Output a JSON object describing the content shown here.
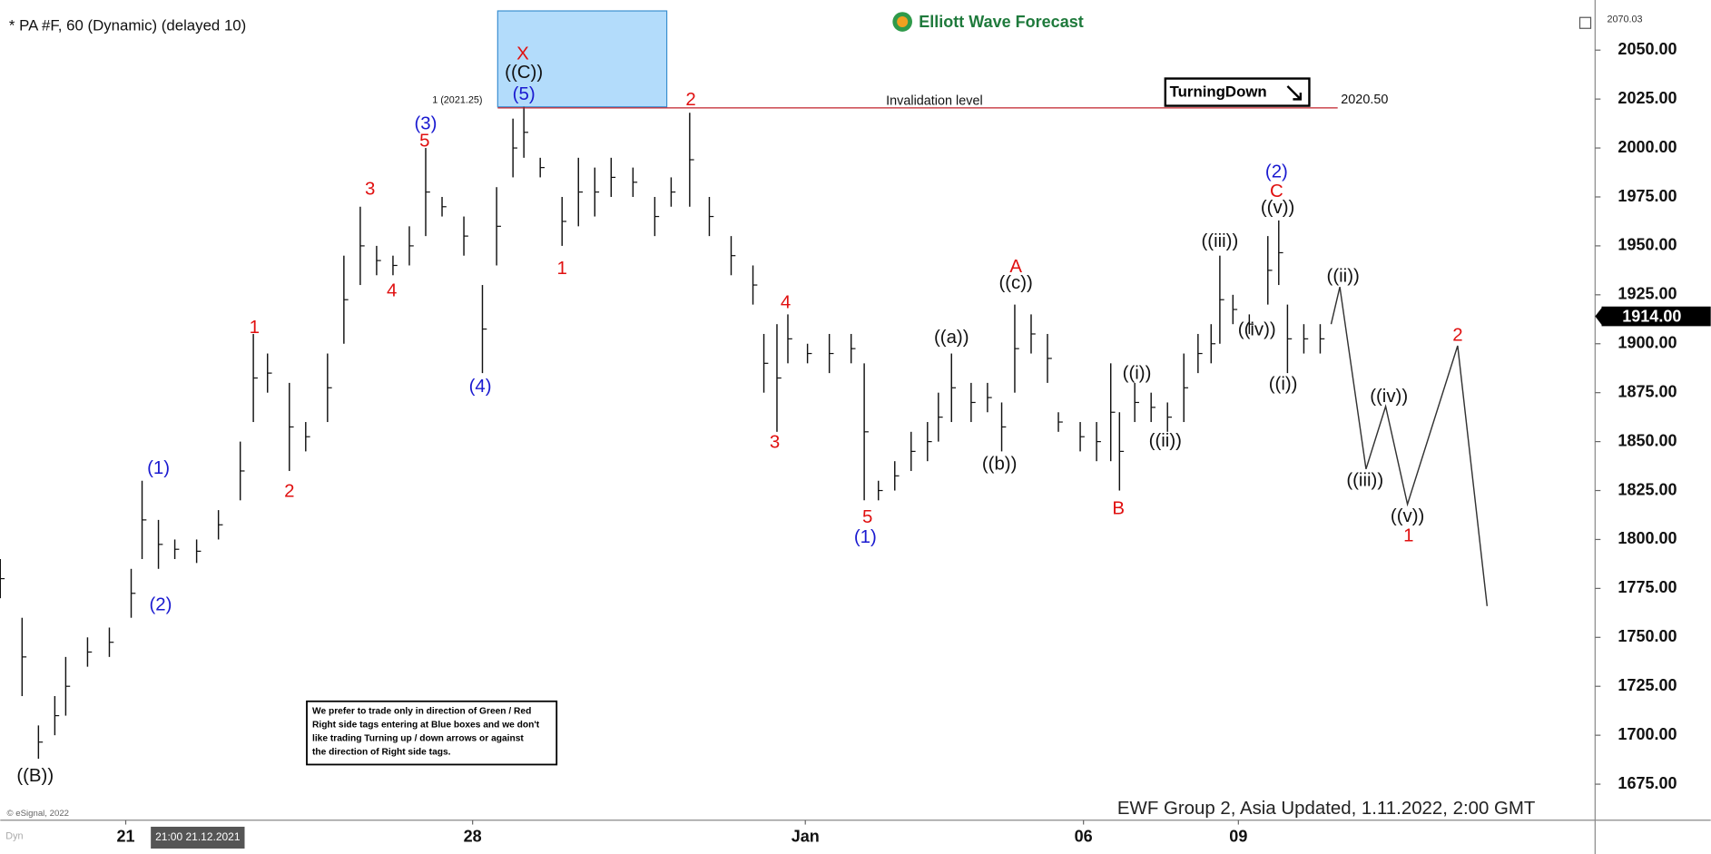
{
  "chart_data": {
    "type": "hilo",
    "title": "* PA #F, 60 (Dynamic) (delayed 10)",
    "logo": "Elliott Wave Forecast",
    "footer": "EWF Group 2, Asia Updated, 1.11.2022, 2:00 GMT",
    "copyright": "© eSignal, 2022",
    "mode": "Dyn",
    "crosshair_label": "21:00 21.12.2021",
    "turning_tag": "TurningDown",
    "disclaimer": [
      "We prefer to trade only in direction of Green / Red",
      "Right side tags entering at Blue boxes and we don't",
      "like trading Turning up / down arrows or against",
      "the direction of Right side tags."
    ],
    "fib_label": "1 (2021.25)",
    "invalidation": {
      "label": "Invalidation level",
      "value": 2020.5,
      "value_label": "2020.50",
      "color": "#c0202a"
    },
    "top_price": {
      "value": 2070.03,
      "label": "2070.03"
    },
    "last_price": {
      "value": 1914,
      "label": "1914.00"
    },
    "ylim": [
      1656.6,
      2070.03
    ],
    "yticks": [
      {
        "value": 2050,
        "label": "2050.00"
      },
      {
        "value": 2025,
        "label": "2025.00"
      },
      {
        "value": 2000,
        "label": "2000.00"
      },
      {
        "value": 1975,
        "label": "1975.00"
      },
      {
        "value": 1950,
        "label": "1950.00"
      },
      {
        "value": 1925,
        "label": "1925.00"
      },
      {
        "value": 1900,
        "label": "1900.00"
      },
      {
        "value": 1875,
        "label": "1875.00"
      },
      {
        "value": 1850,
        "label": "1850.00"
      },
      {
        "value": 1825,
        "label": "1825.00"
      },
      {
        "value": 1800,
        "label": "1800.00"
      },
      {
        "value": 1775,
        "label": "1775.00"
      },
      {
        "value": 1750,
        "label": "1750.00"
      },
      {
        "value": 1725,
        "label": "1725.00"
      },
      {
        "value": 1700,
        "label": "1700.00"
      },
      {
        "value": 1675,
        "label": "1675.00"
      }
    ],
    "xlim": [
      0,
      146.2
    ],
    "xticks": [
      {
        "value": 11.5,
        "label": "21"
      },
      {
        "value": 43.3,
        "label": "28"
      },
      {
        "value": 73.8,
        "label": "Jan"
      },
      {
        "value": 99.3,
        "label": "06"
      },
      {
        "value": 113.5,
        "label": "09"
      }
    ],
    "bar_color": "#111111",
    "bars": {
      "x": [
        0,
        2,
        3.5,
        5,
        6,
        8,
        10,
        12,
        13,
        14.5,
        16,
        18,
        20,
        22,
        23.2,
        24.5,
        26.5,
        28,
        30,
        31.5,
        33,
        34.5,
        36,
        37.5,
        39,
        40.5,
        42.5,
        44.2,
        45.5,
        47,
        48,
        49.5,
        51.5,
        53,
        54.5,
        56,
        58,
        60,
        61.5,
        63.2,
        65,
        67,
        69,
        70,
        71.2,
        72.2,
        74,
        76,
        78,
        79.2,
        80.5,
        82,
        83.5,
        85,
        86,
        87.2,
        89,
        90.5,
        91.8,
        93,
        94.5,
        96,
        97,
        99,
        100.5,
        101.8,
        102.6,
        104,
        105.5,
        107,
        108.5,
        109.8,
        111,
        111.8,
        113,
        114.5,
        116.2,
        117.2,
        118,
        119.5,
        121
      ],
      "high": [
        1790,
        1760,
        1705,
        1720,
        1740,
        1750,
        1755,
        1785,
        1830,
        1810,
        1800,
        1800,
        1815,
        1850,
        1905,
        1895,
        1880,
        1860,
        1895,
        1945,
        1970,
        1950,
        1945,
        1960,
        2000,
        1975,
        1965,
        1930,
        1980,
        2015,
        2021,
        1995,
        1975,
        1995,
        1990,
        1995,
        1990,
        1975,
        1985,
        2018,
        1975,
        1955,
        1940,
        1905,
        1910,
        1915,
        1900,
        1905,
        1905,
        1890,
        1830,
        1840,
        1855,
        1860,
        1875,
        1895,
        1880,
        1880,
        1870,
        1920,
        1915,
        1905,
        1865,
        1860,
        1860,
        1890,
        1865,
        1880,
        1875,
        1870,
        1895,
        1905,
        1910,
        1945,
        1925,
        1915,
        1955,
        1963,
        1920,
        1910,
        1910
      ],
      "low": [
        1770,
        1720,
        1688,
        1700,
        1710,
        1735,
        1740,
        1760,
        1790,
        1785,
        1790,
        1788,
        1800,
        1820,
        1860,
        1875,
        1835,
        1845,
        1860,
        1900,
        1930,
        1935,
        1935,
        1940,
        1955,
        1965,
        1945,
        1885,
        1940,
        1985,
        1995,
        1985,
        1950,
        1960,
        1965,
        1975,
        1975,
        1955,
        1970,
        1970,
        1955,
        1935,
        1920,
        1875,
        1855,
        1890,
        1890,
        1885,
        1890,
        1820,
        1820,
        1825,
        1835,
        1840,
        1850,
        1860,
        1860,
        1865,
        1845,
        1875,
        1895,
        1880,
        1855,
        1845,
        1840,
        1840,
        1825,
        1860,
        1860,
        1855,
        1860,
        1885,
        1890,
        1900,
        1910,
        1905,
        1920,
        1930,
        1885,
        1895,
        1895
      ]
    },
    "projection": {
      "color": "#333333",
      "x": [
        122,
        122.8,
        125.2,
        127,
        129,
        133.6,
        136.3
      ],
      "y": [
        1910,
        1929,
        1836,
        1868,
        1818,
        1899,
        1766
      ]
    },
    "wave_colors": {
      "red": "#e01010",
      "blue": "#1a1ad0",
      "black": "#111111"
    },
    "wave_labels": [
      {
        "text": "((B))",
        "color": "black"
      },
      {
        "text": "(1)",
        "color": "blue"
      },
      {
        "text": "(2)",
        "color": "blue"
      },
      {
        "text": "1",
        "color": "red"
      },
      {
        "text": "2",
        "color": "red"
      },
      {
        "text": "3",
        "color": "red"
      },
      {
        "text": "4",
        "color": "red"
      },
      {
        "text": "(3)",
        "color": "blue"
      },
      {
        "text": "5",
        "color": "red"
      },
      {
        "text": "(4)",
        "color": "blue"
      },
      {
        "text": "X",
        "color": "red"
      },
      {
        "text": "((C))",
        "color": "black"
      },
      {
        "text": "(5)",
        "color": "blue"
      },
      {
        "text": "1",
        "color": "red"
      },
      {
        "text": "2",
        "color": "red"
      },
      {
        "text": "4",
        "color": "red"
      },
      {
        "text": "3",
        "color": "red"
      },
      {
        "text": "5",
        "color": "red"
      },
      {
        "text": "(1)",
        "color": "blue"
      },
      {
        "text": "((a))",
        "color": "black"
      },
      {
        "text": "((b))",
        "color": "black"
      },
      {
        "text": "((c))",
        "color": "black"
      },
      {
        "text": "A",
        "color": "red"
      },
      {
        "text": "B",
        "color": "red"
      },
      {
        "text": "((i))",
        "color": "black"
      },
      {
        "text": "((ii))",
        "color": "black"
      },
      {
        "text": "((iii))",
        "color": "black"
      },
      {
        "text": "((iv))",
        "color": "black"
      },
      {
        "text": "(2)",
        "color": "blue"
      },
      {
        "text": "C",
        "color": "red"
      },
      {
        "text": "((v))",
        "color": "black"
      },
      {
        "text": "((i))",
        "color": "black"
      },
      {
        "text": "((ii))",
        "color": "black"
      },
      {
        "text": "((iii))",
        "color": "black"
      },
      {
        "text": "((iv))",
        "color": "black"
      },
      {
        "text": "((v))",
        "color": "black"
      },
      {
        "text": "1",
        "color": "red"
      },
      {
        "text": "2",
        "color": "red"
      }
    ]
  }
}
